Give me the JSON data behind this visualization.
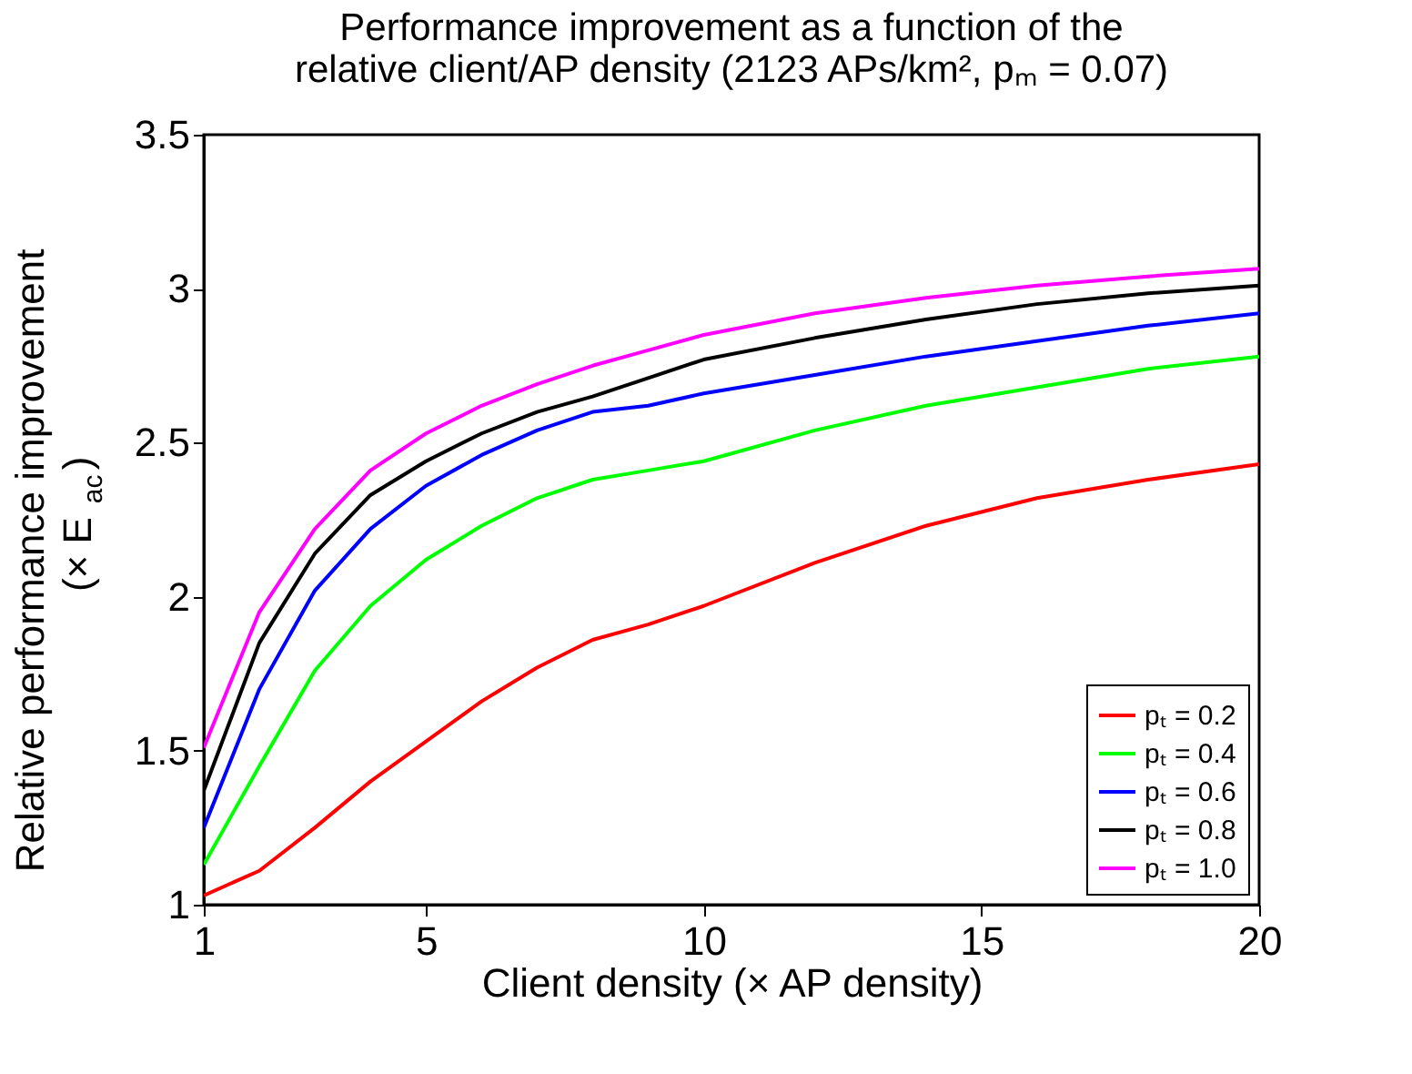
{
  "chart_data": {
    "type": "line",
    "title": [
      "Performance improvement as a function of the",
      "relative client/AP density (2123 APs/km², pₘ = 0.07)"
    ],
    "xlabel": "Client density (× AP density)",
    "ylabel": [
      "Relative performance improvement",
      "(× E$_{ac}$)"
    ],
    "x": [
      1,
      2,
      3,
      4,
      5,
      6,
      7,
      8,
      9,
      10,
      12,
      14,
      16,
      18,
      20
    ],
    "series": [
      {
        "name": "pₜ = 0.2",
        "color": "#ff0000",
        "values": [
          1.03,
          1.11,
          1.25,
          1.4,
          1.53,
          1.66,
          1.77,
          1.86,
          1.91,
          1.97,
          2.11,
          2.23,
          2.32,
          2.38,
          2.43
        ]
      },
      {
        "name": "pₜ = 0.4",
        "color": "#00ff00",
        "values": [
          1.13,
          1.45,
          1.76,
          1.97,
          2.12,
          2.23,
          2.32,
          2.38,
          2.41,
          2.44,
          2.54,
          2.62,
          2.68,
          2.74,
          2.78
        ]
      },
      {
        "name": "pₜ = 0.6",
        "color": "#0000ff",
        "values": [
          1.25,
          1.7,
          2.02,
          2.22,
          2.36,
          2.46,
          2.54,
          2.6,
          2.62,
          2.66,
          2.72,
          2.78,
          2.83,
          2.88,
          2.92
        ]
      },
      {
        "name": "pₜ = 0.8",
        "color": "#000000",
        "values": [
          1.37,
          1.85,
          2.14,
          2.33,
          2.44,
          2.53,
          2.6,
          2.65,
          2.71,
          2.77,
          2.84,
          2.9,
          2.95,
          2.985,
          3.01
        ]
      },
      {
        "name": "pₜ = 1.0",
        "color": "#ff00ff",
        "values": [
          1.51,
          1.95,
          2.22,
          2.41,
          2.53,
          2.62,
          2.69,
          2.75,
          2.8,
          2.85,
          2.92,
          2.97,
          3.01,
          3.04,
          3.065
        ]
      }
    ],
    "xlim": [
      1,
      20
    ],
    "xticks": [
      1,
      5,
      10,
      15,
      20
    ],
    "ylim": [
      1,
      3.5
    ],
    "yticks": [
      1,
      1.5,
      2,
      2.5,
      3,
      3.5
    ],
    "grid": false,
    "legend": "bottom right",
    "marker": "none",
    "line_style": "solid"
  }
}
